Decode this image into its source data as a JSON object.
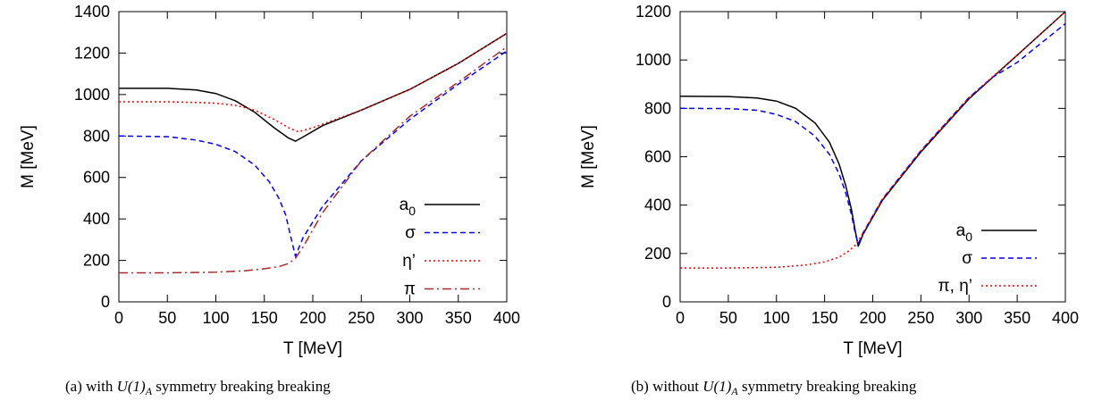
{
  "chart_data": [
    {
      "type": "line",
      "caption": {
        "tag": "(a)",
        "pre": "with",
        "math": "U(1)",
        "sub": "A",
        "post": "symmetry breaking breaking"
      },
      "xlabel": "T [MeV]",
      "ylabel": "M [MeV]",
      "xlim": [
        0,
        400
      ],
      "ylim": [
        0,
        1400
      ],
      "xticks": [
        0,
        50,
        100,
        150,
        200,
        250,
        300,
        350,
        400
      ],
      "yticks": [
        0,
        200,
        400,
        600,
        800,
        1000,
        1200,
        1400
      ],
      "legend_position": "bottom-right",
      "series": [
        {
          "name": "a",
          "name_sub": "0",
          "color": "#000000",
          "dash": "solid",
          "points": [
            [
              0,
              1030
            ],
            [
              50,
              1030
            ],
            [
              80,
              1022
            ],
            [
              100,
              1005
            ],
            [
              120,
              970
            ],
            [
              140,
              915
            ],
            [
              160,
              840
            ],
            [
              175,
              790
            ],
            [
              182,
              775
            ],
            [
              190,
              795
            ],
            [
              210,
              850
            ],
            [
              250,
              925
            ],
            [
              300,
              1025
            ],
            [
              350,
              1150
            ],
            [
              400,
              1295
            ]
          ]
        },
        {
          "name": "σ",
          "color": "#0000ee",
          "dash": "dashed",
          "points": [
            [
              0,
              800
            ],
            [
              50,
              797
            ],
            [
              80,
              780
            ],
            [
              100,
              760
            ],
            [
              120,
              725
            ],
            [
              140,
              660
            ],
            [
              155,
              580
            ],
            [
              165,
              500
            ],
            [
              172,
              420
            ],
            [
              178,
              300
            ],
            [
              182,
              220
            ],
            [
              190,
              310
            ],
            [
              210,
              460
            ],
            [
              250,
              680
            ],
            [
              300,
              880
            ],
            [
              350,
              1050
            ],
            [
              400,
              1210
            ]
          ]
        },
        {
          "name": "η’",
          "color": "#ee0000",
          "dash": "dotted",
          "points": [
            [
              0,
              965
            ],
            [
              50,
              965
            ],
            [
              80,
              962
            ],
            [
              100,
              958
            ],
            [
              120,
              948
            ],
            [
              140,
              925
            ],
            [
              160,
              880
            ],
            [
              175,
              840
            ],
            [
              185,
              820
            ],
            [
              200,
              840
            ],
            [
              250,
              925
            ],
            [
              300,
              1025
            ],
            [
              350,
              1150
            ],
            [
              400,
              1295
            ]
          ]
        },
        {
          "name": "π",
          "color": "#a52a2a",
          "dash": "dashdot",
          "points": [
            [
              0,
              140
            ],
            [
              50,
              140
            ],
            [
              100,
              143
            ],
            [
              130,
              150
            ],
            [
              150,
              160
            ],
            [
              165,
              170
            ],
            [
              175,
              185
            ],
            [
              182,
              210
            ],
            [
              190,
              265
            ],
            [
              210,
              430
            ],
            [
              250,
              680
            ],
            [
              300,
              895
            ],
            [
              350,
              1060
            ],
            [
              400,
              1230
            ]
          ]
        }
      ]
    },
    {
      "type": "line",
      "caption": {
        "tag": "(b)",
        "pre": "without",
        "math": "U(1)",
        "sub": "A",
        "post": "symmetry breaking breaking"
      },
      "xlabel": "T [MeV]",
      "ylabel": "M [MeV]",
      "xlim": [
        0,
        400
      ],
      "ylim": [
        0,
        1200
      ],
      "xticks": [
        0,
        50,
        100,
        150,
        200,
        250,
        300,
        350,
        400
      ],
      "yticks": [
        0,
        200,
        400,
        600,
        800,
        1000,
        1200
      ],
      "legend_position": "bottom-right",
      "series": [
        {
          "name": "a",
          "name_sub": "0",
          "color": "#000000",
          "dash": "solid",
          "points": [
            [
              0,
              850
            ],
            [
              50,
              849
            ],
            [
              80,
              843
            ],
            [
              100,
              830
            ],
            [
              120,
              800
            ],
            [
              140,
              740
            ],
            [
              155,
              660
            ],
            [
              165,
              570
            ],
            [
              172,
              480
            ],
            [
              178,
              380
            ],
            [
              182,
              290
            ],
            [
              185,
              230
            ],
            [
              190,
              280
            ],
            [
              210,
              420
            ],
            [
              250,
              620
            ],
            [
              300,
              840
            ],
            [
              350,
              1020
            ],
            [
              400,
              1200
            ]
          ]
        },
        {
          "name": "σ",
          "color": "#0000ee",
          "dash": "dashed",
          "points": [
            [
              0,
              800
            ],
            [
              50,
              799
            ],
            [
              80,
              792
            ],
            [
              100,
              775
            ],
            [
              120,
              745
            ],
            [
              140,
              685
            ],
            [
              155,
              610
            ],
            [
              165,
              530
            ],
            [
              172,
              450
            ],
            [
              178,
              360
            ],
            [
              182,
              280
            ],
            [
              185,
              240
            ],
            [
              190,
              285
            ],
            [
              210,
              425
            ],
            [
              250,
              625
            ],
            [
              300,
              845
            ],
            [
              325,
              930
            ],
            [
              350,
              990
            ],
            [
              400,
              1150
            ]
          ]
        },
        {
          "name": "π, η’",
          "color": "#ee0000",
          "dash": "dotted",
          "points": [
            [
              0,
              140
            ],
            [
              50,
              140
            ],
            [
              100,
              143
            ],
            [
              130,
              152
            ],
            [
              150,
              165
            ],
            [
              165,
              185
            ],
            [
              175,
              210
            ],
            [
              182,
              235
            ],
            [
              190,
              285
            ],
            [
              210,
              425
            ],
            [
              250,
              625
            ],
            [
              300,
              845
            ],
            [
              350,
              1020
            ],
            [
              400,
              1200
            ]
          ]
        }
      ]
    }
  ]
}
